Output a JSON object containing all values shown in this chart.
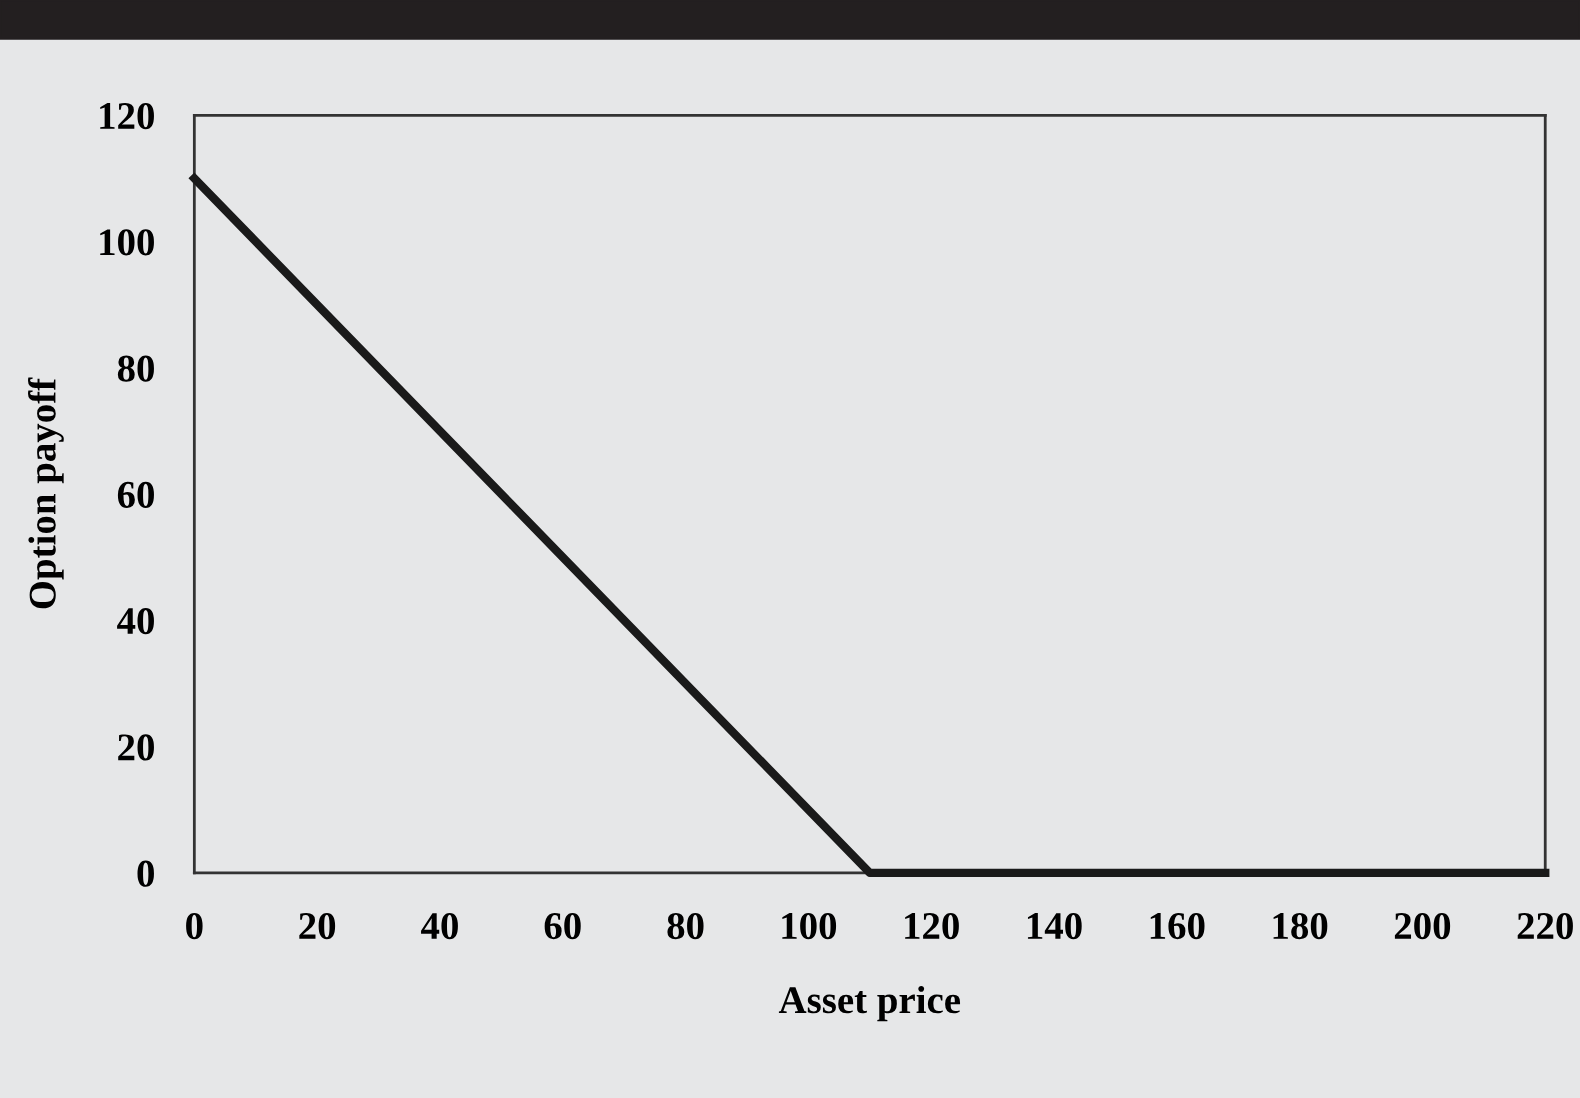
{
  "chart_data": {
    "type": "line",
    "xlabel": "Asset price",
    "ylabel": "Option payoff",
    "x": [
      0,
      110,
      220
    ],
    "series": [
      {
        "color": "#1a1a1a",
        "values": [
          110,
          0,
          0
        ]
      }
    ],
    "xlim": [
      0,
      220
    ],
    "xticks": [
      0,
      20,
      40,
      60,
      80,
      100,
      120,
      140,
      160,
      180,
      200,
      220
    ],
    "ylim": [
      0,
      120
    ],
    "yticks": [
      0,
      20,
      40,
      60,
      80,
      100,
      120
    ],
    "grid": false,
    "legend": false,
    "marker": "none",
    "line_style": "solid"
  }
}
